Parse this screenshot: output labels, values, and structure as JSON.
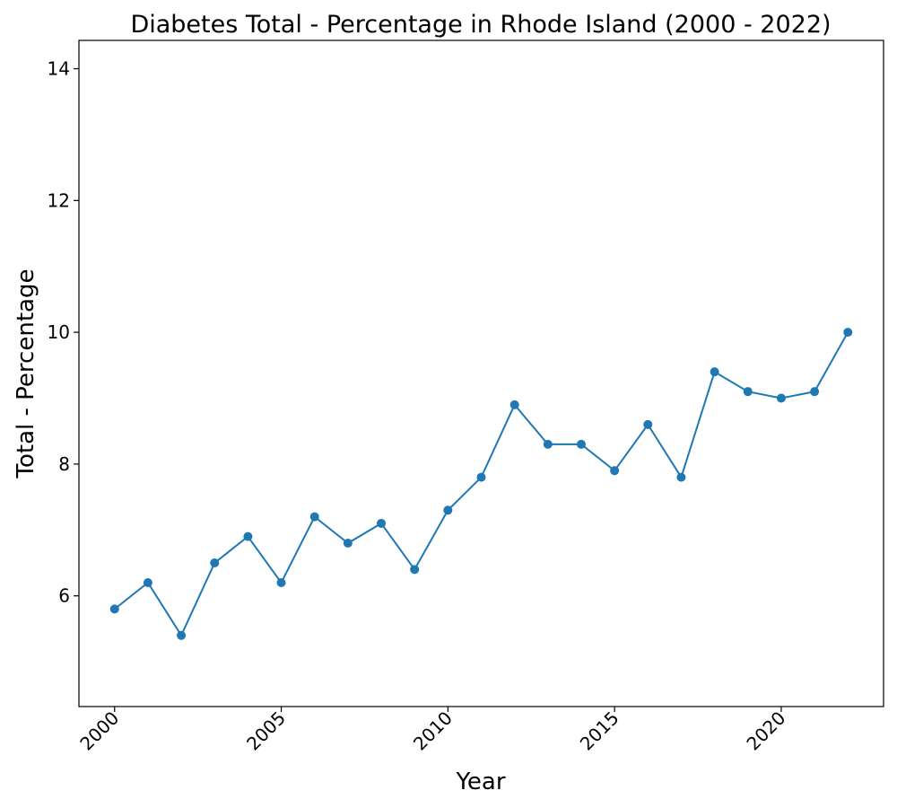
{
  "chart_data": {
    "type": "line",
    "title": "Diabetes Total - Percentage in Rhode Island (2000 - 2022)",
    "xlabel": "Year",
    "ylabel": "Total - Percentage",
    "x": [
      2000,
      2001,
      2002,
      2003,
      2004,
      2005,
      2006,
      2007,
      2008,
      2009,
      2010,
      2011,
      2012,
      2013,
      2014,
      2015,
      2016,
      2017,
      2018,
      2019,
      2020,
      2021,
      2022
    ],
    "series": [
      {
        "values": [
          5.8,
          6.2,
          5.4,
          6.5,
          6.9,
          6.2,
          7.2,
          6.8,
          7.1,
          6.4,
          7.3,
          7.8,
          8.9,
          8.3,
          8.3,
          7.9,
          8.6,
          7.8,
          9.4,
          9.1,
          9.0,
          9.1,
          10.0
        ],
        "color": "#1f77b4"
      }
    ],
    "xticks": [
      "2000",
      "2005",
      "2010",
      "2015",
      "2020"
    ],
    "xtick_values": [
      2000,
      2005,
      2010,
      2015,
      2020
    ],
    "yticks": [
      "6",
      "8",
      "10",
      "12",
      "14"
    ],
    "ytick_values": [
      6,
      8,
      10,
      12,
      14
    ],
    "xlim": [
      1998.93,
      2023.07
    ],
    "ylim": [
      4.32,
      14.43
    ],
    "xtick_rotation": 45,
    "grid": false,
    "legend": false,
    "marker": "circle"
  }
}
